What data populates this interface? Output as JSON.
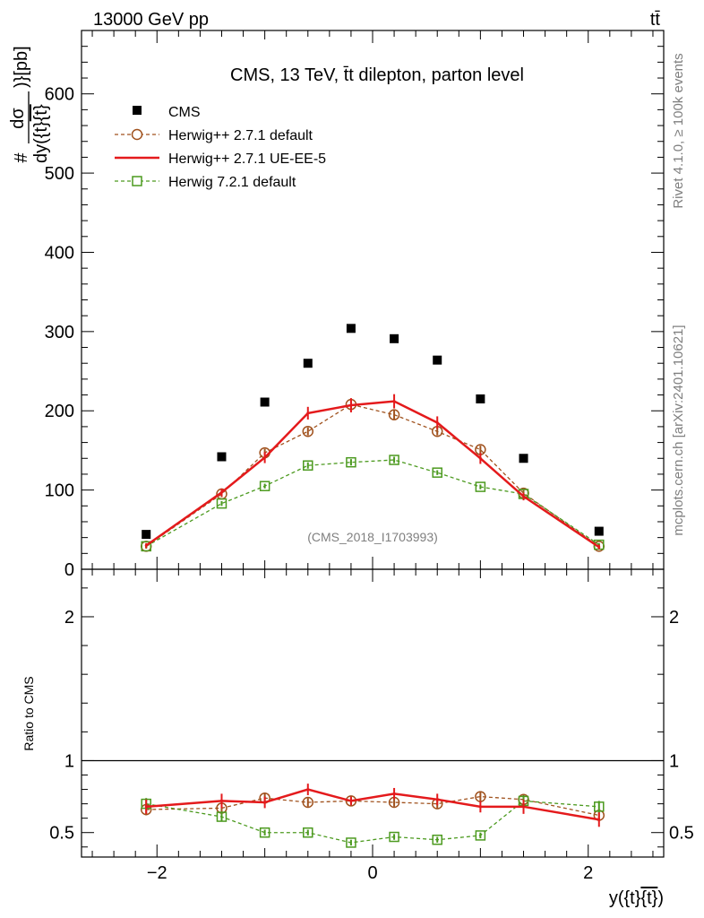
{
  "header": {
    "energy_label": "13000 GeV pp",
    "process_label": "tt̄",
    "rivet_label": "Rivet 4.1.0, ≥ 100k events",
    "source_label": "mcplots.cern.ch [arXiv:2401.10621]"
  },
  "chart_data": {
    "type": "line",
    "title": "CMS, 13 TeV, t̄t dilepton, parton level",
    "analysis_tag": "(CMS_2018_I1703993)",
    "ylabel_main": "#dσ/dy({t}̄{t})}[pb]",
    "ylabel_main_parts": {
      "hash": "#",
      "numerator": "dσ",
      "denominator": "dy({t}",
      "denominator_bar": "{t}",
      "tail": ")}[pb]"
    },
    "ylabel_ratio": "Ratio to CMS",
    "xlabel": "y({t}̄{t})",
    "xlabel_parts": {
      "start": "y({t}",
      "bar": "{t}",
      "end": ")"
    },
    "xlim": [
      -2.7,
      2.7
    ],
    "ylim_main": [
      0,
      680
    ],
    "ylim_ratio": [
      0.33,
      2.33
    ],
    "x_ticks": [
      {
        "value": -2,
        "label": "−2"
      },
      {
        "value": 0,
        "label": "0"
      },
      {
        "value": 2,
        "label": "2"
      }
    ],
    "y_ticks_main": [
      {
        "value": 0,
        "label": "0"
      },
      {
        "value": 100,
        "label": "100"
      },
      {
        "value": 200,
        "label": "200"
      },
      {
        "value": 300,
        "label": "300"
      },
      {
        "value": 400,
        "label": "400"
      },
      {
        "value": 500,
        "label": "500"
      },
      {
        "value": 600,
        "label": "600"
      }
    ],
    "y_ticks_ratio": [
      {
        "value": 0.5,
        "label": "0.5"
      },
      {
        "value": 1,
        "label": "1"
      },
      {
        "value": 2,
        "label": "2"
      }
    ],
    "x": [
      -2.1,
      -1.4,
      -1.0,
      -0.6,
      -0.2,
      0.2,
      0.6,
      1.0,
      1.4,
      2.1
    ],
    "series": [
      {
        "name": "CMS",
        "style": "data",
        "color": "#000000",
        "values": [
          44,
          142,
          211,
          260,
          304,
          291,
          264,
          215,
          140,
          48
        ]
      },
      {
        "name": "Herwig++ 2.7.1 default",
        "style": "circle-dashed",
        "color": "#a0521e",
        "values": [
          29,
          95,
          147,
          174,
          208,
          195,
          174,
          151,
          96,
          29
        ],
        "errors": [
          3,
          4,
          5,
          5,
          6,
          6,
          5,
          5,
          4,
          3
        ],
        "ratio": [
          0.66,
          0.67,
          0.74,
          0.71,
          0.72,
          0.71,
          0.7,
          0.75,
          0.73,
          0.62
        ],
        "ratio_errors": [
          0.04,
          0.03,
          0.03,
          0.03,
          0.03,
          0.03,
          0.03,
          0.03,
          0.03,
          0.04
        ]
      },
      {
        "name": "Herwig++ 2.7.1 UE-EE-5",
        "style": "solid",
        "color": "#e41a1c",
        "values": [
          30,
          97,
          141,
          197,
          207,
          212,
          185,
          140,
          92,
          28
        ],
        "errors": [
          3,
          5,
          7,
          8,
          9,
          9,
          8,
          7,
          5,
          3
        ],
        "ratio": [
          0.68,
          0.72,
          0.71,
          0.8,
          0.72,
          0.77,
          0.73,
          0.68,
          0.68,
          0.59
        ],
        "ratio_errors": [
          0.05,
          0.05,
          0.04,
          0.04,
          0.03,
          0.04,
          0.04,
          0.04,
          0.05,
          0.05
        ]
      },
      {
        "name": "Herwig 7.2.1 default",
        "style": "square-dashed",
        "color": "#4c9a1f",
        "values": [
          29,
          83,
          105,
          131,
          135,
          138,
          122,
          104,
          95,
          31
        ],
        "errors": [
          2,
          3,
          3,
          4,
          4,
          4,
          3,
          3,
          3,
          2
        ],
        "ratio": [
          0.7,
          0.61,
          0.5,
          0.5,
          0.43,
          0.47,
          0.45,
          0.48,
          0.72,
          0.68
        ],
        "ratio_errors": [
          0.04,
          0.03,
          0.02,
          0.02,
          0.02,
          0.02,
          0.02,
          0.02,
          0.04,
          0.04
        ]
      }
    ]
  }
}
